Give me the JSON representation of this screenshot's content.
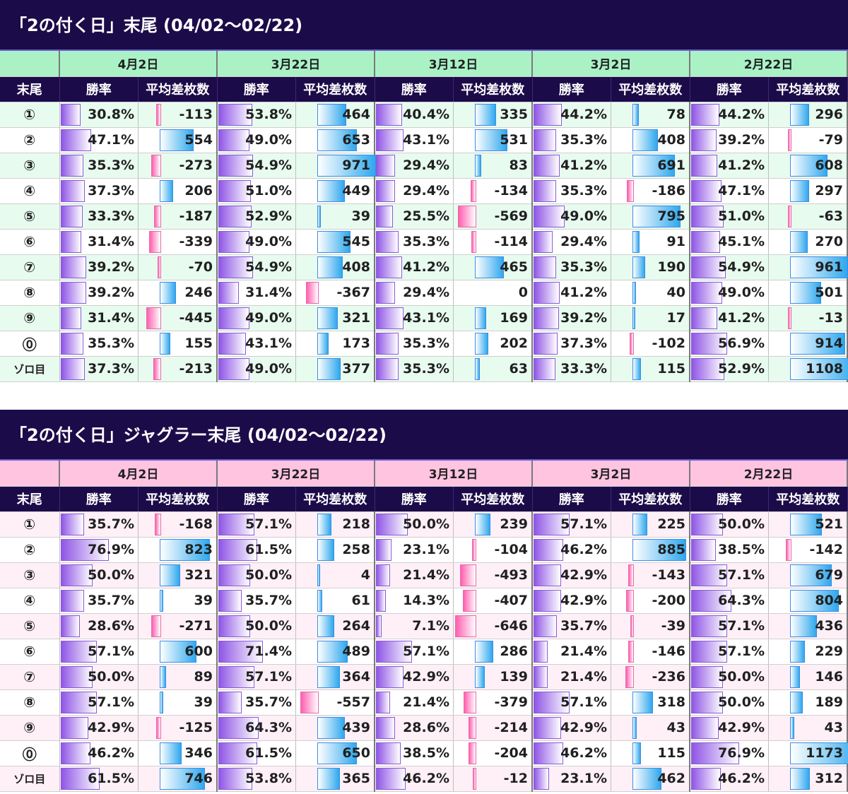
{
  "chart_data": [
    {
      "type": "table",
      "title": "「2の付く日」末尾 (04/02～02/22)",
      "theme": {
        "date_bg": "#aaf2c6",
        "row_even": "#e8fbef",
        "row_odd": "#ffffff"
      },
      "column_headers": {
        "key": "末尾",
        "rate": "勝率",
        "diff": "平均差枚数"
      },
      "rows": [
        "①",
        "②",
        "③",
        "④",
        "⑤",
        "⑥",
        "⑦",
        "⑧",
        "⑨",
        "⓪",
        "ゾロ目"
      ],
      "blocks": [
        {
          "date": "4月2日",
          "rate": [
            "30.8%",
            "47.1%",
            "35.3%",
            "37.3%",
            "33.3%",
            "31.4%",
            "39.2%",
            "39.2%",
            "31.4%",
            "35.3%",
            "37.3%"
          ],
          "diff": [
            -113,
            554,
            -273,
            206,
            -187,
            -339,
            -70,
            246,
            -445,
            155,
            -213
          ]
        },
        {
          "date": "3月22日",
          "rate": [
            "53.8%",
            "49.0%",
            "54.9%",
            "51.0%",
            "52.9%",
            "49.0%",
            "54.9%",
            "31.4%",
            "49.0%",
            "43.1%",
            "49.0%"
          ],
          "diff": [
            464,
            653,
            971,
            449,
            39,
            545,
            408,
            -367,
            321,
            173,
            377
          ]
        },
        {
          "date": "3月12日",
          "rate": [
            "40.4%",
            "43.1%",
            "29.4%",
            "29.4%",
            "25.5%",
            "35.3%",
            "41.2%",
            "29.4%",
            "43.1%",
            "35.3%",
            "35.3%"
          ],
          "diff": [
            335,
            531,
            83,
            -134,
            -569,
            -114,
            465,
            0,
            169,
            202,
            63
          ]
        },
        {
          "date": "3月2日",
          "rate": [
            "44.2%",
            "35.3%",
            "41.2%",
            "35.3%",
            "49.0%",
            "29.4%",
            "35.3%",
            "41.2%",
            "39.2%",
            "37.3%",
            "33.3%"
          ],
          "diff": [
            78,
            408,
            691,
            -186,
            795,
            91,
            190,
            40,
            17,
            -102,
            115
          ]
        },
        {
          "date": "2月22日",
          "rate": [
            "44.2%",
            "39.2%",
            "41.2%",
            "47.1%",
            "51.0%",
            "45.1%",
            "54.9%",
            "49.0%",
            "41.2%",
            "56.9%",
            "52.9%"
          ],
          "diff": [
            296,
            -79,
            608,
            297,
            -63,
            270,
            961,
            501,
            -13,
            914,
            1108
          ]
        }
      ]
    },
    {
      "type": "table",
      "title": "「2の付く日」ジャグラー末尾 (04/02～02/22)",
      "theme": {
        "date_bg": "#ffc4e0",
        "row_even": "#fff0f7",
        "row_odd": "#ffffff"
      },
      "column_headers": {
        "key": "末尾",
        "rate": "勝率",
        "diff": "平均差枚数"
      },
      "rows": [
        "①",
        "②",
        "③",
        "④",
        "⑤",
        "⑥",
        "⑦",
        "⑧",
        "⑨",
        "⓪",
        "ゾロ目"
      ],
      "blocks": [
        {
          "date": "4月2日",
          "rate": [
            "35.7%",
            "76.9%",
            "50.0%",
            "35.7%",
            "28.6%",
            "57.1%",
            "50.0%",
            "57.1%",
            "42.9%",
            "46.2%",
            "61.5%"
          ],
          "diff": [
            -168,
            823,
            321,
            39,
            -271,
            600,
            89,
            39,
            -125,
            346,
            746
          ]
        },
        {
          "date": "3月22日",
          "rate": [
            "57.1%",
            "61.5%",
            "50.0%",
            "35.7%",
            "50.0%",
            "71.4%",
            "57.1%",
            "35.7%",
            "64.3%",
            "61.5%",
            "53.8%"
          ],
          "diff": [
            218,
            258,
            4,
            61,
            264,
            489,
            364,
            -557,
            439,
            650,
            365
          ]
        },
        {
          "date": "3月12日",
          "rate": [
            "50.0%",
            "23.1%",
            "21.4%",
            "14.3%",
            "7.1%",
            "57.1%",
            "42.9%",
            "21.4%",
            "28.6%",
            "38.5%",
            "46.2%"
          ],
          "diff": [
            239,
            -104,
            -493,
            -407,
            -646,
            286,
            139,
            -379,
            -214,
            -204,
            -12
          ]
        },
        {
          "date": "3月2日",
          "rate": [
            "57.1%",
            "46.2%",
            "42.9%",
            "42.9%",
            "35.7%",
            "21.4%",
            "21.4%",
            "57.1%",
            "42.9%",
            "46.2%",
            "23.1%"
          ],
          "diff": [
            225,
            885,
            -143,
            -200,
            -39,
            -146,
            -236,
            318,
            43,
            115,
            462
          ]
        },
        {
          "date": "2月22日",
          "rate": [
            "50.0%",
            "38.5%",
            "57.1%",
            "64.3%",
            "57.1%",
            "57.1%",
            "50.0%",
            "50.0%",
            "42.9%",
            "76.9%",
            "46.2%"
          ],
          "diff": [
            521,
            -142,
            679,
            804,
            436,
            229,
            146,
            189,
            43,
            1173,
            312
          ]
        }
      ]
    }
  ]
}
